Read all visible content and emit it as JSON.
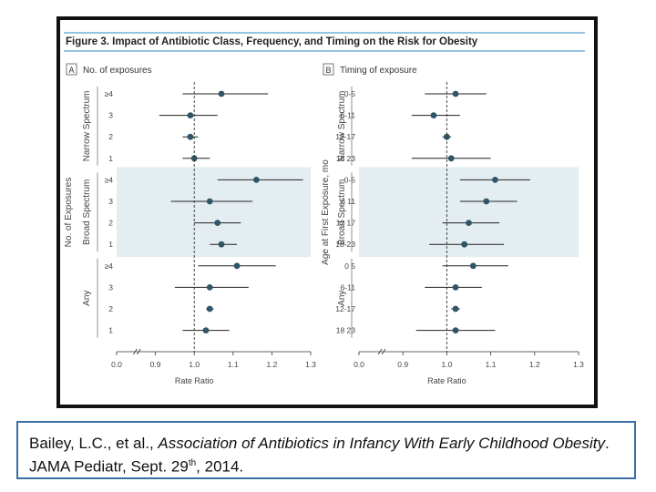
{
  "figure_title": "Figure 3. Impact of Antibiotic Class, Frequency, and Timing on the Risk for Obesity",
  "citation": {
    "authors": "Bailey, L.C., et al., ",
    "title": "Association of Antibiotics in Infancy With Early Childhood Obesity",
    "journal": ". JAMA Pediatr, Sept. 29",
    "sup": "th",
    "year": ", 2014."
  },
  "colors": {
    "accent": "#2e8bc0",
    "marker": "#2f5566",
    "band": "#e4edf1"
  },
  "chart_data": [
    {
      "type": "scatter",
      "panel_letter": "A",
      "title": "No. of exposures",
      "xlabel": "Rate Ratio",
      "ylabel": "No. of Exposures",
      "xlim": [
        0.0,
        1.3
      ],
      "x_ticks": [
        "0.0",
        "0.9",
        "1.0",
        "1.1",
        "1.2",
        "1.3"
      ],
      "reference_line": 1.0,
      "groups": [
        {
          "label": "Narrow Spectrum",
          "shaded": false,
          "rows": [
            {
              "label": "≥4",
              "estimate": 1.07,
              "lower": 0.97,
              "upper": 1.19
            },
            {
              "label": "3",
              "estimate": 0.99,
              "lower": 0.91,
              "upper": 1.06
            },
            {
              "label": "2",
              "estimate": 0.99,
              "lower": 0.97,
              "upper": 1.01
            },
            {
              "label": "1",
              "estimate": 1.0,
              "lower": 0.97,
              "upper": 1.04
            }
          ]
        },
        {
          "label": "Broad Spectrum",
          "shaded": true,
          "rows": [
            {
              "label": "≥4",
              "estimate": 1.16,
              "lower": 1.06,
              "upper": 1.28
            },
            {
              "label": "3",
              "estimate": 1.04,
              "lower": 0.94,
              "upper": 1.15
            },
            {
              "label": "2",
              "estimate": 1.06,
              "lower": 1.0,
              "upper": 1.12
            },
            {
              "label": "1",
              "estimate": 1.07,
              "lower": 1.04,
              "upper": 1.11
            }
          ]
        },
        {
          "label": "Any",
          "shaded": false,
          "rows": [
            {
              "label": "≥4",
              "estimate": 1.11,
              "lower": 1.01,
              "upper": 1.21
            },
            {
              "label": "3",
              "estimate": 1.04,
              "lower": 0.95,
              "upper": 1.14
            },
            {
              "label": "2",
              "estimate": 1.04,
              "lower": 1.03,
              "upper": 1.05
            },
            {
              "label": "1",
              "estimate": 1.03,
              "lower": 0.97,
              "upper": 1.09
            }
          ]
        }
      ]
    },
    {
      "type": "scatter",
      "panel_letter": "B",
      "title": "Timing of exposure",
      "xlabel": "Rate Ratio",
      "ylabel": "Age at First Exposure, mo",
      "xlim": [
        0.0,
        1.3
      ],
      "x_ticks": [
        "0.0",
        "0.9",
        "1.0",
        "1.1",
        "1.2",
        "1.3"
      ],
      "reference_line": 1.0,
      "groups": [
        {
          "label": "Narrow Spectrum",
          "shaded": false,
          "rows": [
            {
              "label": "0-5",
              "estimate": 1.02,
              "lower": 0.95,
              "upper": 1.09
            },
            {
              "label": "6-11",
              "estimate": 0.97,
              "lower": 0.92,
              "upper": 1.03
            },
            {
              "label": "12-17",
              "estimate": 1.0,
              "lower": 0.99,
              "upper": 1.01
            },
            {
              "label": "18 23",
              "estimate": 1.01,
              "lower": 0.92,
              "upper": 1.1
            }
          ]
        },
        {
          "label": "Broad Spectrum",
          "shaded": true,
          "rows": [
            {
              "label": "0-5",
              "estimate": 1.11,
              "lower": 1.03,
              "upper": 1.19
            },
            {
              "label": "6 11",
              "estimate": 1.09,
              "lower": 1.03,
              "upper": 1.16
            },
            {
              "label": "12 17",
              "estimate": 1.05,
              "lower": 0.99,
              "upper": 1.12
            },
            {
              "label": "18-23",
              "estimate": 1.04,
              "lower": 0.96,
              "upper": 1.13
            }
          ]
        },
        {
          "label": "Any",
          "shaded": false,
          "rows": [
            {
              "label": "0 5",
              "estimate": 1.06,
              "lower": 0.99,
              "upper": 1.14
            },
            {
              "label": "6-11",
              "estimate": 1.02,
              "lower": 0.95,
              "upper": 1.08
            },
            {
              "label": "12-17",
              "estimate": 1.02,
              "lower": 1.01,
              "upper": 1.03
            },
            {
              "label": "18 23",
              "estimate": 1.02,
              "lower": 0.93,
              "upper": 1.11
            }
          ]
        }
      ]
    }
  ]
}
